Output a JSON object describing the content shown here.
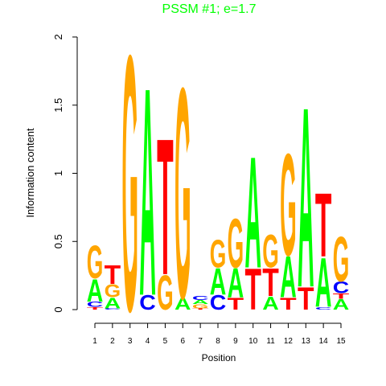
{
  "chart_data": {
    "type": "sequence-logo",
    "title": "PSSM #1; e=1.7",
    "title_color": "#00ff00",
    "x_label": "Position",
    "y_label": "Information content",
    "categories": [
      "1",
      "2",
      "3",
      "4",
      "5",
      "6",
      "7",
      "8",
      "9",
      "10",
      "11",
      "12",
      "13",
      "14",
      "15"
    ],
    "ylim": [
      0,
      2
    ],
    "yticks": [
      0,
      0.5,
      1,
      1.5,
      2
    ],
    "colors": {
      "A": "#00ff00",
      "C": "#0000ff",
      "G": "#ffa500",
      "T": "#ff0000"
    },
    "stacks": [
      [
        {
          "letter": "T",
          "value": 0.02
        },
        {
          "letter": "C",
          "value": 0.04
        },
        {
          "letter": "A",
          "value": 0.17
        },
        {
          "letter": "G",
          "value": 0.25
        }
      ],
      [
        {
          "letter": "C",
          "value": 0.01
        },
        {
          "letter": "A",
          "value": 0.08
        },
        {
          "letter": "G",
          "value": 0.1
        },
        {
          "letter": "T",
          "value": 0.14
        }
      ],
      [
        {
          "letter": "G",
          "value": 1.93
        }
      ],
      [
        {
          "letter": "C",
          "value": 0.11
        },
        {
          "letter": "A",
          "value": 1.57
        }
      ],
      [
        {
          "letter": "G",
          "value": 0.26
        },
        {
          "letter": "T",
          "value": 1.03
        }
      ],
      [
        {
          "letter": "A",
          "value": 0.09
        },
        {
          "letter": "G",
          "value": 1.59
        }
      ],
      [
        {
          "letter": "T",
          "value": 0.01
        },
        {
          "letter": "G",
          "value": 0.03
        },
        {
          "letter": "A",
          "value": 0.03
        },
        {
          "letter": "C",
          "value": 0.03
        }
      ],
      [
        {
          "letter": "C",
          "value": 0.11
        },
        {
          "letter": "A",
          "value": 0.2
        },
        {
          "letter": "G",
          "value": 0.21
        }
      ],
      [
        {
          "letter": "T",
          "value": 0.09
        },
        {
          "letter": "A",
          "value": 0.22
        },
        {
          "letter": "G",
          "value": 0.37
        }
      ],
      [
        {
          "letter": "T",
          "value": 0.31
        },
        {
          "letter": "A",
          "value": 0.84
        }
      ],
      [
        {
          "letter": "A",
          "value": 0.1
        },
        {
          "letter": "T",
          "value": 0.21
        },
        {
          "letter": "G",
          "value": 0.25
        }
      ],
      [
        {
          "letter": "T",
          "value": 0.09
        },
        {
          "letter": "A",
          "value": 0.31
        },
        {
          "letter": "G",
          "value": 0.77
        }
      ],
      [
        {
          "letter": "T",
          "value": 0.17
        },
        {
          "letter": "A",
          "value": 1.36
        }
      ],
      [
        {
          "letter": "C",
          "value": 0.02
        },
        {
          "letter": "A",
          "value": 0.37
        },
        {
          "letter": "T",
          "value": 0.48
        }
      ],
      [
        {
          "letter": "A",
          "value": 0.08
        },
        {
          "letter": "T",
          "value": 0.04
        },
        {
          "letter": "C",
          "value": 0.09
        },
        {
          "letter": "G",
          "value": 0.34
        }
      ]
    ]
  }
}
